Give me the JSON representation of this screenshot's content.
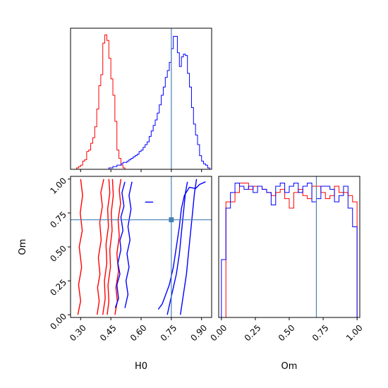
{
  "chart_data": {
    "type": "corner",
    "parameters": [
      "H0",
      "Om"
    ],
    "truth": {
      "H0": 0.75,
      "Om": 0.7
    },
    "truth_color": "#4682b4",
    "series": [
      {
        "color": "#ff0000"
      },
      {
        "color": "#0000ff"
      }
    ],
    "panels": [
      {
        "id": "H0-marginal",
        "type": "histogram",
        "x_param": "H0",
        "xlim": [
          0.25,
          0.95
        ],
        "y_ticks": "hidden",
        "bin_edges": [
          0.27,
          0.28,
          0.29,
          0.3,
          0.31,
          0.32,
          0.33,
          0.34,
          0.35,
          0.36,
          0.37,
          0.38,
          0.39,
          0.4,
          0.41,
          0.42,
          0.43,
          0.44,
          0.45,
          0.46,
          0.47,
          0.48,
          0.49,
          0.5,
          0.51,
          0.52,
          0.53,
          0.54,
          0.55,
          0.56,
          0.57,
          0.58,
          0.59,
          0.6,
          0.61,
          0.62,
          0.63,
          0.64,
          0.65,
          0.66,
          0.67,
          0.68,
          0.69,
          0.7,
          0.71,
          0.72,
          0.73,
          0.74,
          0.75,
          0.76,
          0.77,
          0.78,
          0.79,
          0.8,
          0.81,
          0.82,
          0.83,
          0.84,
          0.85,
          0.86,
          0.87,
          0.88,
          0.89,
          0.9,
          0.91,
          0.92,
          0.93,
          0.94,
          0.95
        ],
        "series_counts": [
          [
            0,
            1,
            2,
            3,
            6,
            7,
            13,
            14,
            19,
            23,
            31,
            44,
            61,
            69,
            92,
            98,
            94,
            81,
            66,
            54,
            35,
            14,
            8,
            3,
            1,
            0,
            0,
            0,
            0,
            0,
            0,
            0,
            0,
            0,
            0,
            0,
            0,
            0,
            0,
            0,
            0,
            0,
            0,
            0,
            0,
            0,
            0,
            0,
            0,
            0,
            0,
            0,
            0,
            0,
            0,
            0,
            0,
            0,
            0,
            0,
            0,
            0,
            0,
            0,
            0,
            0,
            0,
            0
          ],
          [
            0,
            0,
            0,
            0,
            0,
            0,
            0,
            0,
            0,
            0,
            0,
            0,
            0,
            0,
            0,
            0,
            0,
            1,
            1,
            2,
            2,
            3,
            3,
            4,
            5,
            5,
            6,
            7,
            8,
            9,
            10,
            11,
            13,
            14,
            16,
            18,
            20,
            24,
            28,
            32,
            36,
            41,
            47,
            54,
            60,
            67,
            72,
            78,
            88,
            97,
            97,
            85,
            75,
            82,
            84,
            83,
            70,
            60,
            45,
            33,
            25,
            18,
            10,
            6,
            4,
            3,
            1,
            0
          ]
        ]
      },
      {
        "id": "H0-Om-contour",
        "type": "contour",
        "x_param": "H0",
        "y_param": "Om",
        "xlim": [
          0.25,
          0.95
        ],
        "ylim": [
          -0.02,
          1.02
        ],
        "x_ticks": [
          "0.30",
          "0.45",
          "0.60",
          "0.75",
          "0.90"
        ],
        "y_ticks": [
          "0.00",
          "0.25",
          "0.50",
          "0.75",
          "1.00"
        ],
        "series_contours": [
          [
            [
              [
                0.286,
                0.0
              ],
              [
                0.3,
                0.1
              ],
              [
                0.29,
                0.22
              ],
              [
                0.305,
                0.35
              ],
              [
                0.293,
                0.5
              ],
              [
                0.308,
                0.62
              ],
              [
                0.298,
                0.75
              ],
              [
                0.31,
                0.88
              ],
              [
                0.3,
                1.0
              ]
            ],
            [
              [
                0.382,
                0.0
              ],
              [
                0.392,
                0.1
              ],
              [
                0.384,
                0.2
              ],
              [
                0.396,
                0.3
              ],
              [
                0.388,
                0.42
              ],
              [
                0.402,
                0.55
              ],
              [
                0.395,
                0.68
              ],
              [
                0.408,
                0.8
              ],
              [
                0.4,
                0.9
              ],
              [
                0.415,
                1.0
              ]
            ],
            [
              [
                0.41,
                0.0
              ],
              [
                0.422,
                0.12
              ],
              [
                0.418,
                0.25
              ],
              [
                0.43,
                0.38
              ],
              [
                0.426,
                0.52
              ],
              [
                0.438,
                0.65
              ],
              [
                0.434,
                0.78
              ],
              [
                0.445,
                0.9
              ],
              [
                0.44,
                1.0
              ]
            ],
            [
              [
                0.432,
                0.0
              ],
              [
                0.44,
                0.1
              ],
              [
                0.436,
                0.22
              ],
              [
                0.448,
                0.35
              ],
              [
                0.445,
                0.48
              ],
              [
                0.456,
                0.62
              ],
              [
                0.452,
                0.75
              ],
              [
                0.462,
                0.88
              ],
              [
                0.458,
                1.0
              ]
            ],
            [
              [
                0.47,
                0.0
              ],
              [
                0.482,
                0.1
              ],
              [
                0.475,
                0.2
              ],
              [
                0.488,
                0.32
              ],
              [
                0.48,
                0.45
              ],
              [
                0.492,
                0.58
              ],
              [
                0.486,
                0.7
              ],
              [
                0.498,
                0.82
              ],
              [
                0.492,
                0.92
              ],
              [
                0.5,
                1.0
              ]
            ]
          ],
          [
            [
              [
                0.472,
                0.05
              ],
              [
                0.488,
                0.12
              ],
              [
                0.48,
                0.22
              ],
              [
                0.495,
                0.3
              ],
              [
                0.485,
                0.38
              ],
              [
                0.5,
                0.48
              ],
              [
                0.495,
                0.55
              ],
              [
                0.51,
                0.62
              ],
              [
                0.5,
                0.72
              ],
              [
                0.515,
                0.8
              ],
              [
                0.505,
                0.9
              ],
              [
                0.52,
                0.98
              ]
            ],
            [
              [
                0.52,
                0.05
              ],
              [
                0.535,
                0.15
              ],
              [
                0.525,
                0.25
              ],
              [
                0.54,
                0.35
              ],
              [
                0.53,
                0.45
              ],
              [
                0.545,
                0.55
              ],
              [
                0.535,
                0.65
              ],
              [
                0.55,
                0.78
              ],
              [
                0.54,
                0.88
              ],
              [
                0.555,
                0.98
              ]
            ],
            [
              [
                0.73,
                0.0
              ],
              [
                0.745,
                0.1
              ],
              [
                0.76,
                0.2
              ],
              [
                0.775,
                0.3
              ],
              [
                0.79,
                0.45
              ],
              [
                0.8,
                0.6
              ],
              [
                0.81,
                0.75
              ],
              [
                0.82,
                0.9
              ],
              [
                0.83,
                0.98
              ]
            ],
            [
              [
                0.795,
                0.0
              ],
              [
                0.81,
                0.15
              ],
              [
                0.825,
                0.3
              ],
              [
                0.835,
                0.45
              ],
              [
                0.845,
                0.6
              ],
              [
                0.855,
                0.75
              ],
              [
                0.865,
                0.9
              ],
              [
                0.875,
                1.0
              ]
            ],
            [
              [
                0.685,
                0.04
              ],
              [
                0.705,
                0.08
              ],
              [
                0.72,
                0.14
              ],
              [
                0.74,
                0.22
              ],
              [
                0.76,
                0.35
              ],
              [
                0.775,
                0.5
              ],
              [
                0.79,
                0.65
              ],
              [
                0.8,
                0.78
              ],
              [
                0.815,
                0.88
              ],
              [
                0.84,
                0.94
              ],
              [
                0.87,
                0.93
              ],
              [
                0.89,
                0.96
              ],
              [
                0.92,
                0.98
              ]
            ],
            [
              [
                0.62,
                0.83
              ],
              [
                0.66,
                0.83
              ]
            ]
          ]
        ]
      },
      {
        "id": "Om-marginal",
        "type": "histogram",
        "x_param": "Om",
        "xlim": [
          -0.02,
          1.02
        ],
        "x_ticks": [
          "0.00",
          "0.25",
          "0.50",
          "0.75",
          "1.00"
        ],
        "y_ticks": "hidden",
        "bin_edges": [
          0.0,
          0.0333,
          0.0667,
          0.1,
          0.1333,
          0.1667,
          0.2,
          0.2333,
          0.2667,
          0.3,
          0.3333,
          0.3667,
          0.4,
          0.4333,
          0.4667,
          0.5,
          0.5333,
          0.5667,
          0.6,
          0.6333,
          0.6667,
          0.7,
          0.7333,
          0.7667,
          0.8,
          0.8333,
          0.8667,
          0.9,
          0.9333,
          0.9667,
          1.0
        ],
        "series_counts": [
          [
            0,
            74,
            74,
            80,
            86,
            86,
            82,
            84,
            84,
            82,
            80,
            78,
            80,
            82,
            76,
            70,
            80,
            82,
            78,
            76,
            84,
            84,
            80,
            76,
            78,
            84,
            80,
            80,
            78,
            74
          ],
          [
            37,
            70,
            80,
            86,
            84,
            82,
            84,
            80,
            84,
            82,
            80,
            72,
            84,
            86,
            80,
            84,
            86,
            80,
            84,
            86,
            74,
            76,
            84,
            84,
            82,
            74,
            78,
            84,
            70,
            58
          ]
        ]
      }
    ],
    "xlabels": [
      "H0",
      "Om"
    ],
    "ylabels": [
      "",
      "Om"
    ]
  }
}
